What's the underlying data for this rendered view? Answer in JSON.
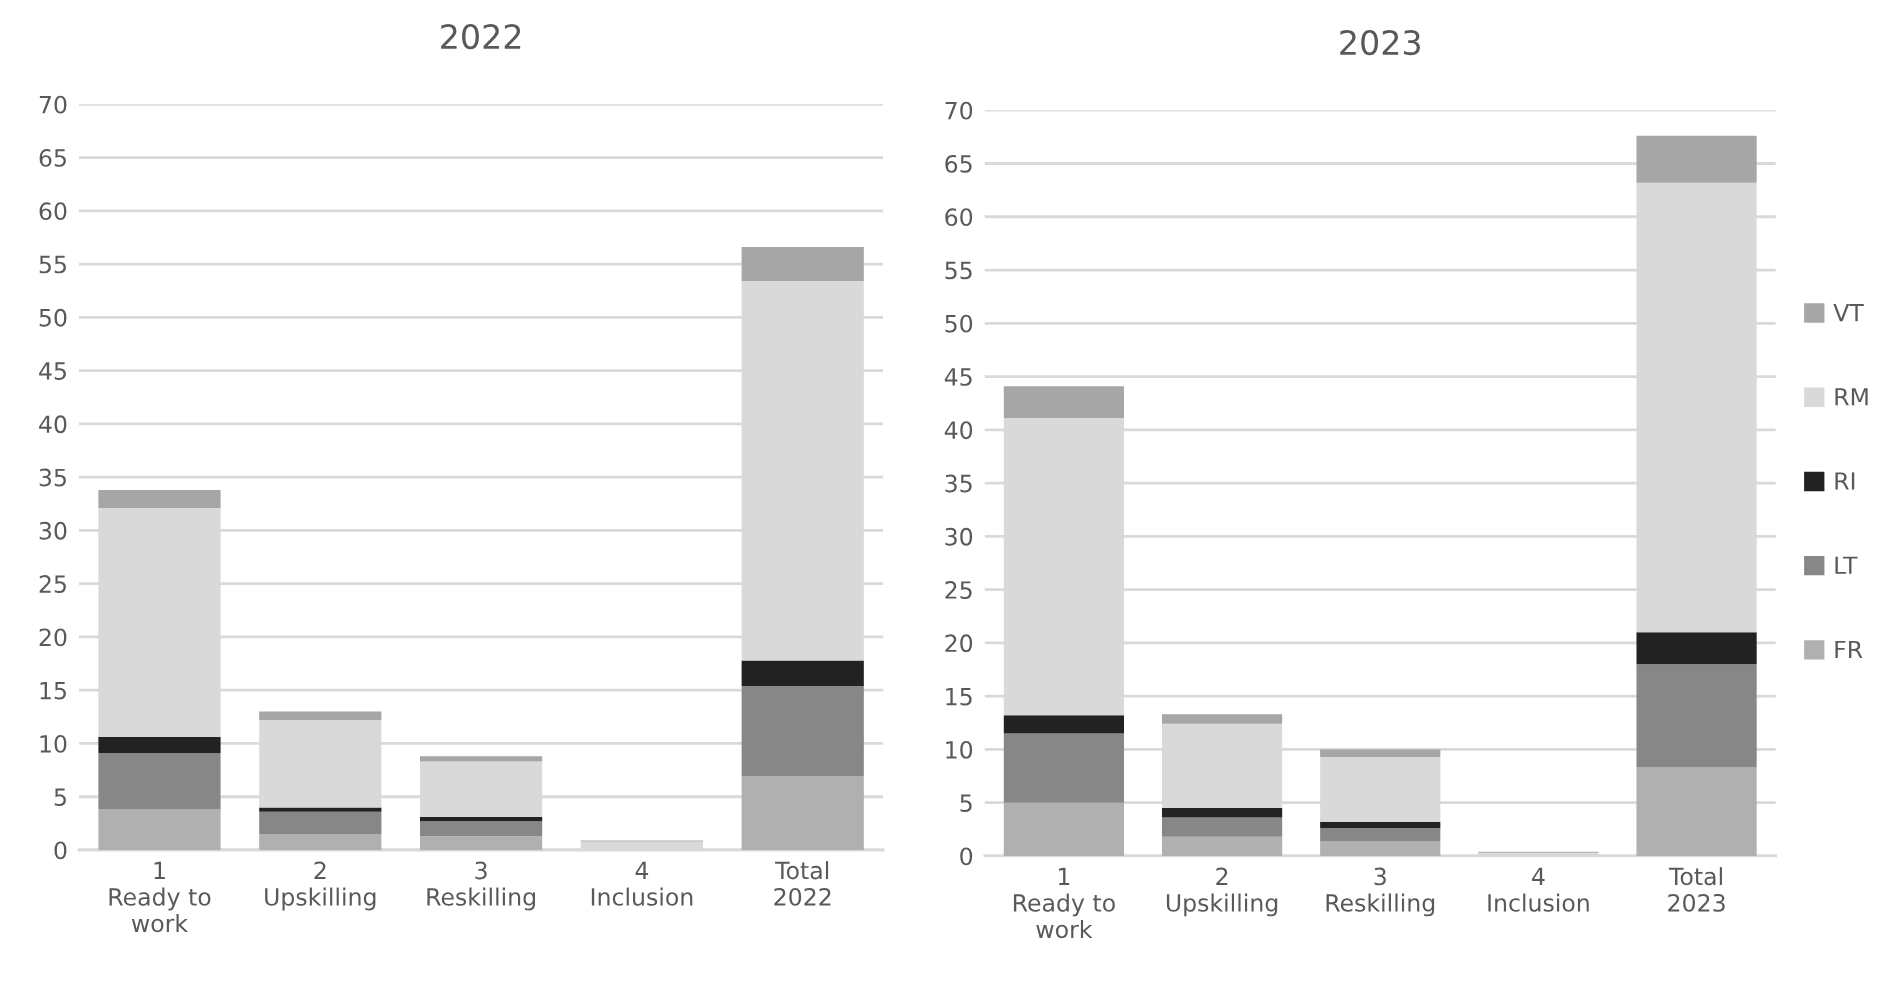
{
  "chart_data": [
    {
      "type": "bar",
      "title": "2022",
      "stacked": true,
      "categories": [
        "1\nReady to\nwork",
        "2\nUpskilling",
        "3\nReskilling",
        "4\nInclusion",
        "Total\n2022"
      ],
      "series": [
        {
          "color": "#b0b0b0",
          "values": [
            3.8,
            1.5,
            1.3,
            0,
            6.9
          ]
        },
        {
          "color": "#878787",
          "values": [
            5.3,
            2.1,
            1.4,
            0,
            8.5
          ]
        },
        {
          "color": "#222222",
          "values": [
            1.5,
            0.4,
            0.4,
            0,
            2.4
          ]
        },
        {
          "color": "#d9d9d9",
          "values": [
            21.5,
            8.2,
            5.2,
            0.8,
            35.6
          ]
        },
        {
          "color": "#a6a6a6",
          "values": [
            1.7,
            0.8,
            0.5,
            0.1,
            3.2
          ]
        }
      ],
      "ylim": [
        0,
        70
      ],
      "yticks": [
        0,
        5,
        10,
        15,
        20,
        25,
        30,
        35,
        40,
        45,
        50,
        55,
        60,
        65,
        70
      ],
      "grid": "y"
    },
    {
      "type": "bar",
      "title": "2023",
      "stacked": true,
      "categories": [
        "1\nReady to\nwork",
        "2\nUpskilling",
        "3\nReskilling",
        "4\nInclusion",
        "Total\n2023"
      ],
      "series": [
        {
          "name": "FR",
          "color": "#b0b0b0",
          "values": [
            5.0,
            1.8,
            1.4,
            0,
            8.3
          ]
        },
        {
          "name": "LT",
          "color": "#878787",
          "values": [
            6.5,
            1.8,
            1.2,
            0,
            9.7
          ]
        },
        {
          "name": "RI",
          "color": "#222222",
          "values": [
            1.7,
            0.9,
            0.6,
            0,
            3.0
          ]
        },
        {
          "name": "RM",
          "color": "#d9d9d9",
          "values": [
            27.9,
            7.9,
            6.1,
            0.3,
            42.2
          ]
        },
        {
          "name": "VT",
          "color": "#a6a6a6",
          "values": [
            3.0,
            0.9,
            0.7,
            0.1,
            4.4
          ]
        }
      ],
      "ylim": [
        0,
        70
      ],
      "yticks": [
        0,
        5,
        10,
        15,
        20,
        25,
        30,
        35,
        40,
        45,
        50,
        55,
        60,
        65,
        70
      ],
      "grid": "y",
      "legend": "right"
    }
  ]
}
